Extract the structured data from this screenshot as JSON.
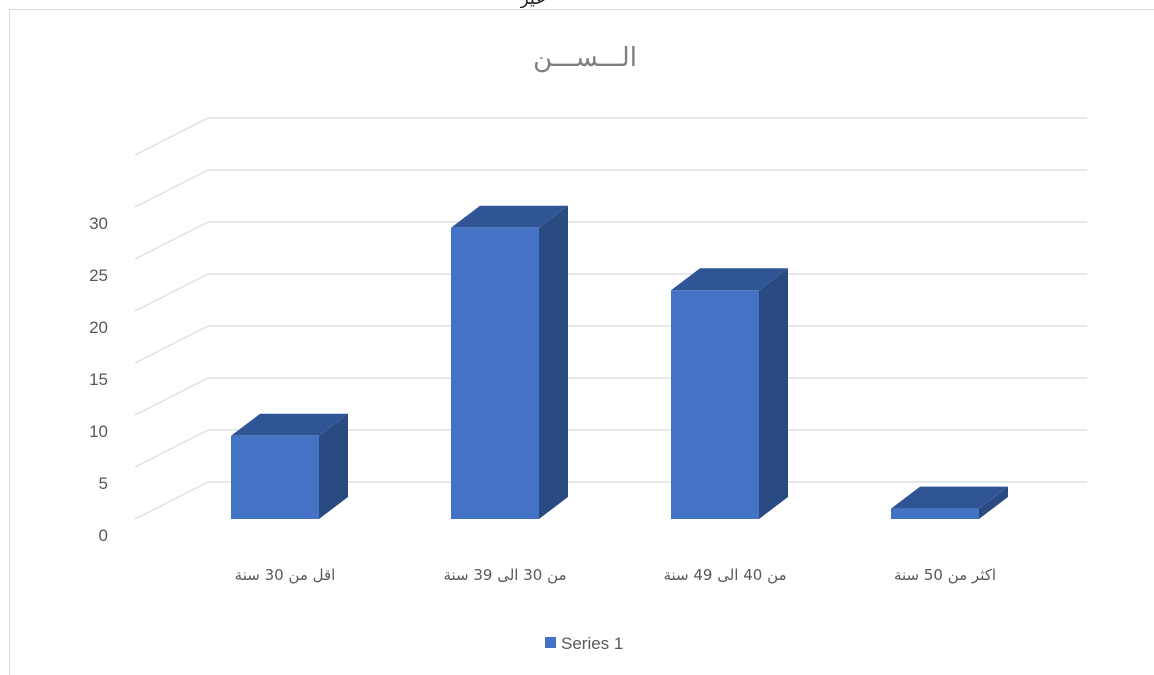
{
  "chart_data": {
    "type": "bar",
    "style": "3d-column",
    "title": "الـــســـن",
    "categories": [
      "اقل من 30 سنة",
      "من 30 الى 39 سنة",
      "من 40 الى 49 سنة",
      "اكثر من 50 سنة"
    ],
    "series": [
      {
        "name": "Series 1",
        "values": [
          8,
          28,
          22,
          1
        ],
        "color": "#4472c4"
      }
    ],
    "yticks": [
      0,
      5,
      10,
      15,
      20,
      25,
      30
    ],
    "ylim": [
      0,
      35
    ],
    "grid": true,
    "legend_position": "bottom"
  },
  "top_fragment": "عير"
}
